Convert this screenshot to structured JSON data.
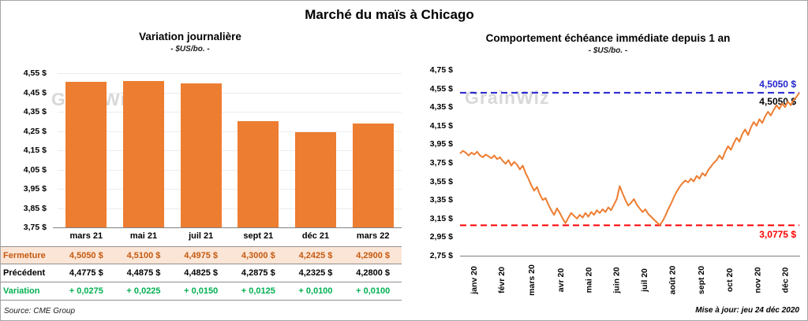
{
  "page": {
    "main_title": "Marché du maïs à Chicago",
    "source": "Source: CME Group",
    "updated": "Mise à jour: jeu 24 déc 2020",
    "watermark": "GrainWiz"
  },
  "chart_data": [
    {
      "type": "bar",
      "title": "Variation journalière",
      "subtitle": "- $US/bo. -",
      "categories": [
        "mars 21",
        "mai 21",
        "juil 21",
        "sept 21",
        "déc 21",
        "mars 22"
      ],
      "values": [
        4.505,
        4.51,
        4.4975,
        4.3,
        4.2425,
        4.29
      ],
      "ylim": [
        3.75,
        4.55
      ],
      "yticks": [
        4.55,
        4.45,
        4.35,
        4.25,
        4.15,
        4.05,
        3.95,
        3.85,
        3.75
      ],
      "ytick_labels": [
        "4,55 $",
        "4,45 $",
        "4,35 $",
        "4,25 $",
        "4,15 $",
        "4,05 $",
        "3,95 $",
        "3,85 $",
        "3,75 $"
      ],
      "bar_color": "#ED7D31",
      "grid": true,
      "legend": "none"
    },
    {
      "type": "line",
      "title": "Comportement échéance immédiate depuis 1 an",
      "subtitle": "- $US/bo. -",
      "x_labels": [
        "janv 20",
        "févr 20",
        "mars 20",
        "avr 20",
        "mai 20",
        "juin 20",
        "juil 20",
        "août 20",
        "sept 20",
        "oct 20",
        "nov 20",
        "déc 20"
      ],
      "values": [
        3.85,
        3.88,
        3.86,
        3.83,
        3.86,
        3.84,
        3.87,
        3.83,
        3.81,
        3.84,
        3.82,
        3.8,
        3.83,
        3.79,
        3.81,
        3.77,
        3.74,
        3.78,
        3.72,
        3.76,
        3.73,
        3.68,
        3.72,
        3.64,
        3.58,
        3.51,
        3.45,
        3.49,
        3.41,
        3.35,
        3.37,
        3.3,
        3.24,
        3.19,
        3.26,
        3.21,
        3.15,
        3.1,
        3.16,
        3.21,
        3.18,
        3.15,
        3.19,
        3.16,
        3.21,
        3.17,
        3.22,
        3.19,
        3.24,
        3.21,
        3.25,
        3.22,
        3.27,
        3.24,
        3.3,
        3.36,
        3.5,
        3.42,
        3.35,
        3.29,
        3.32,
        3.36,
        3.3,
        3.26,
        3.22,
        3.25,
        3.2,
        3.17,
        3.14,
        3.11,
        3.08,
        3.12,
        3.18,
        3.25,
        3.31,
        3.38,
        3.44,
        3.49,
        3.53,
        3.56,
        3.54,
        3.58,
        3.55,
        3.61,
        3.58,
        3.64,
        3.61,
        3.67,
        3.71,
        3.75,
        3.78,
        3.83,
        3.79,
        3.87,
        3.93,
        3.89,
        3.96,
        4.02,
        3.98,
        4.06,
        4.11,
        4.05,
        4.13,
        4.19,
        4.15,
        4.22,
        4.18,
        4.25,
        4.3,
        4.26,
        4.32,
        4.37,
        4.33,
        4.39,
        4.35,
        4.41,
        4.37,
        4.43,
        4.46,
        4.505
      ],
      "ylim": [
        2.75,
        4.75
      ],
      "yticks": [
        4.75,
        4.55,
        4.35,
        4.15,
        3.95,
        3.75,
        3.55,
        3.35,
        3.15,
        2.95,
        2.75
      ],
      "ytick_labels": [
        "4,75 $",
        "4,55 $",
        "4,35 $",
        "4,15 $",
        "3,95 $",
        "3,75 $",
        "3,55 $",
        "3,35 $",
        "3,15 $",
        "2,95 $",
        "2,75 $"
      ],
      "line_color": "#ED7D31",
      "ref_lines": [
        {
          "value": 4.505,
          "label": "4,5050 $",
          "color": "#2323CE",
          "style": "dashed",
          "position": "high"
        },
        {
          "value": 3.0775,
          "label": "3,0775 $",
          "color": "#FF0000",
          "style": "dashed",
          "position": "low"
        }
      ],
      "last_value_label": "4,5050 $",
      "grid": false,
      "legend": "none"
    }
  ],
  "table": {
    "rows": [
      {
        "id": "close",
        "label": "Fermeture",
        "values": [
          "4,5050 $",
          "4,5100 $",
          "4,4975 $",
          "4,3000 $",
          "4,2425 $",
          "4,2900 $"
        ]
      },
      {
        "id": "previous",
        "label": "Précédent",
        "values": [
          "4,4775 $",
          "4,4875 $",
          "4,4825 $",
          "4,2875 $",
          "4,2325 $",
          "4,2800 $"
        ]
      },
      {
        "id": "variation",
        "label": "Variation",
        "values": [
          "+ 0,0275",
          "+ 0,0225",
          "+ 0,0150",
          "+ 0,0125",
          "+ 0,0100",
          "+ 0,0100"
        ]
      }
    ]
  }
}
